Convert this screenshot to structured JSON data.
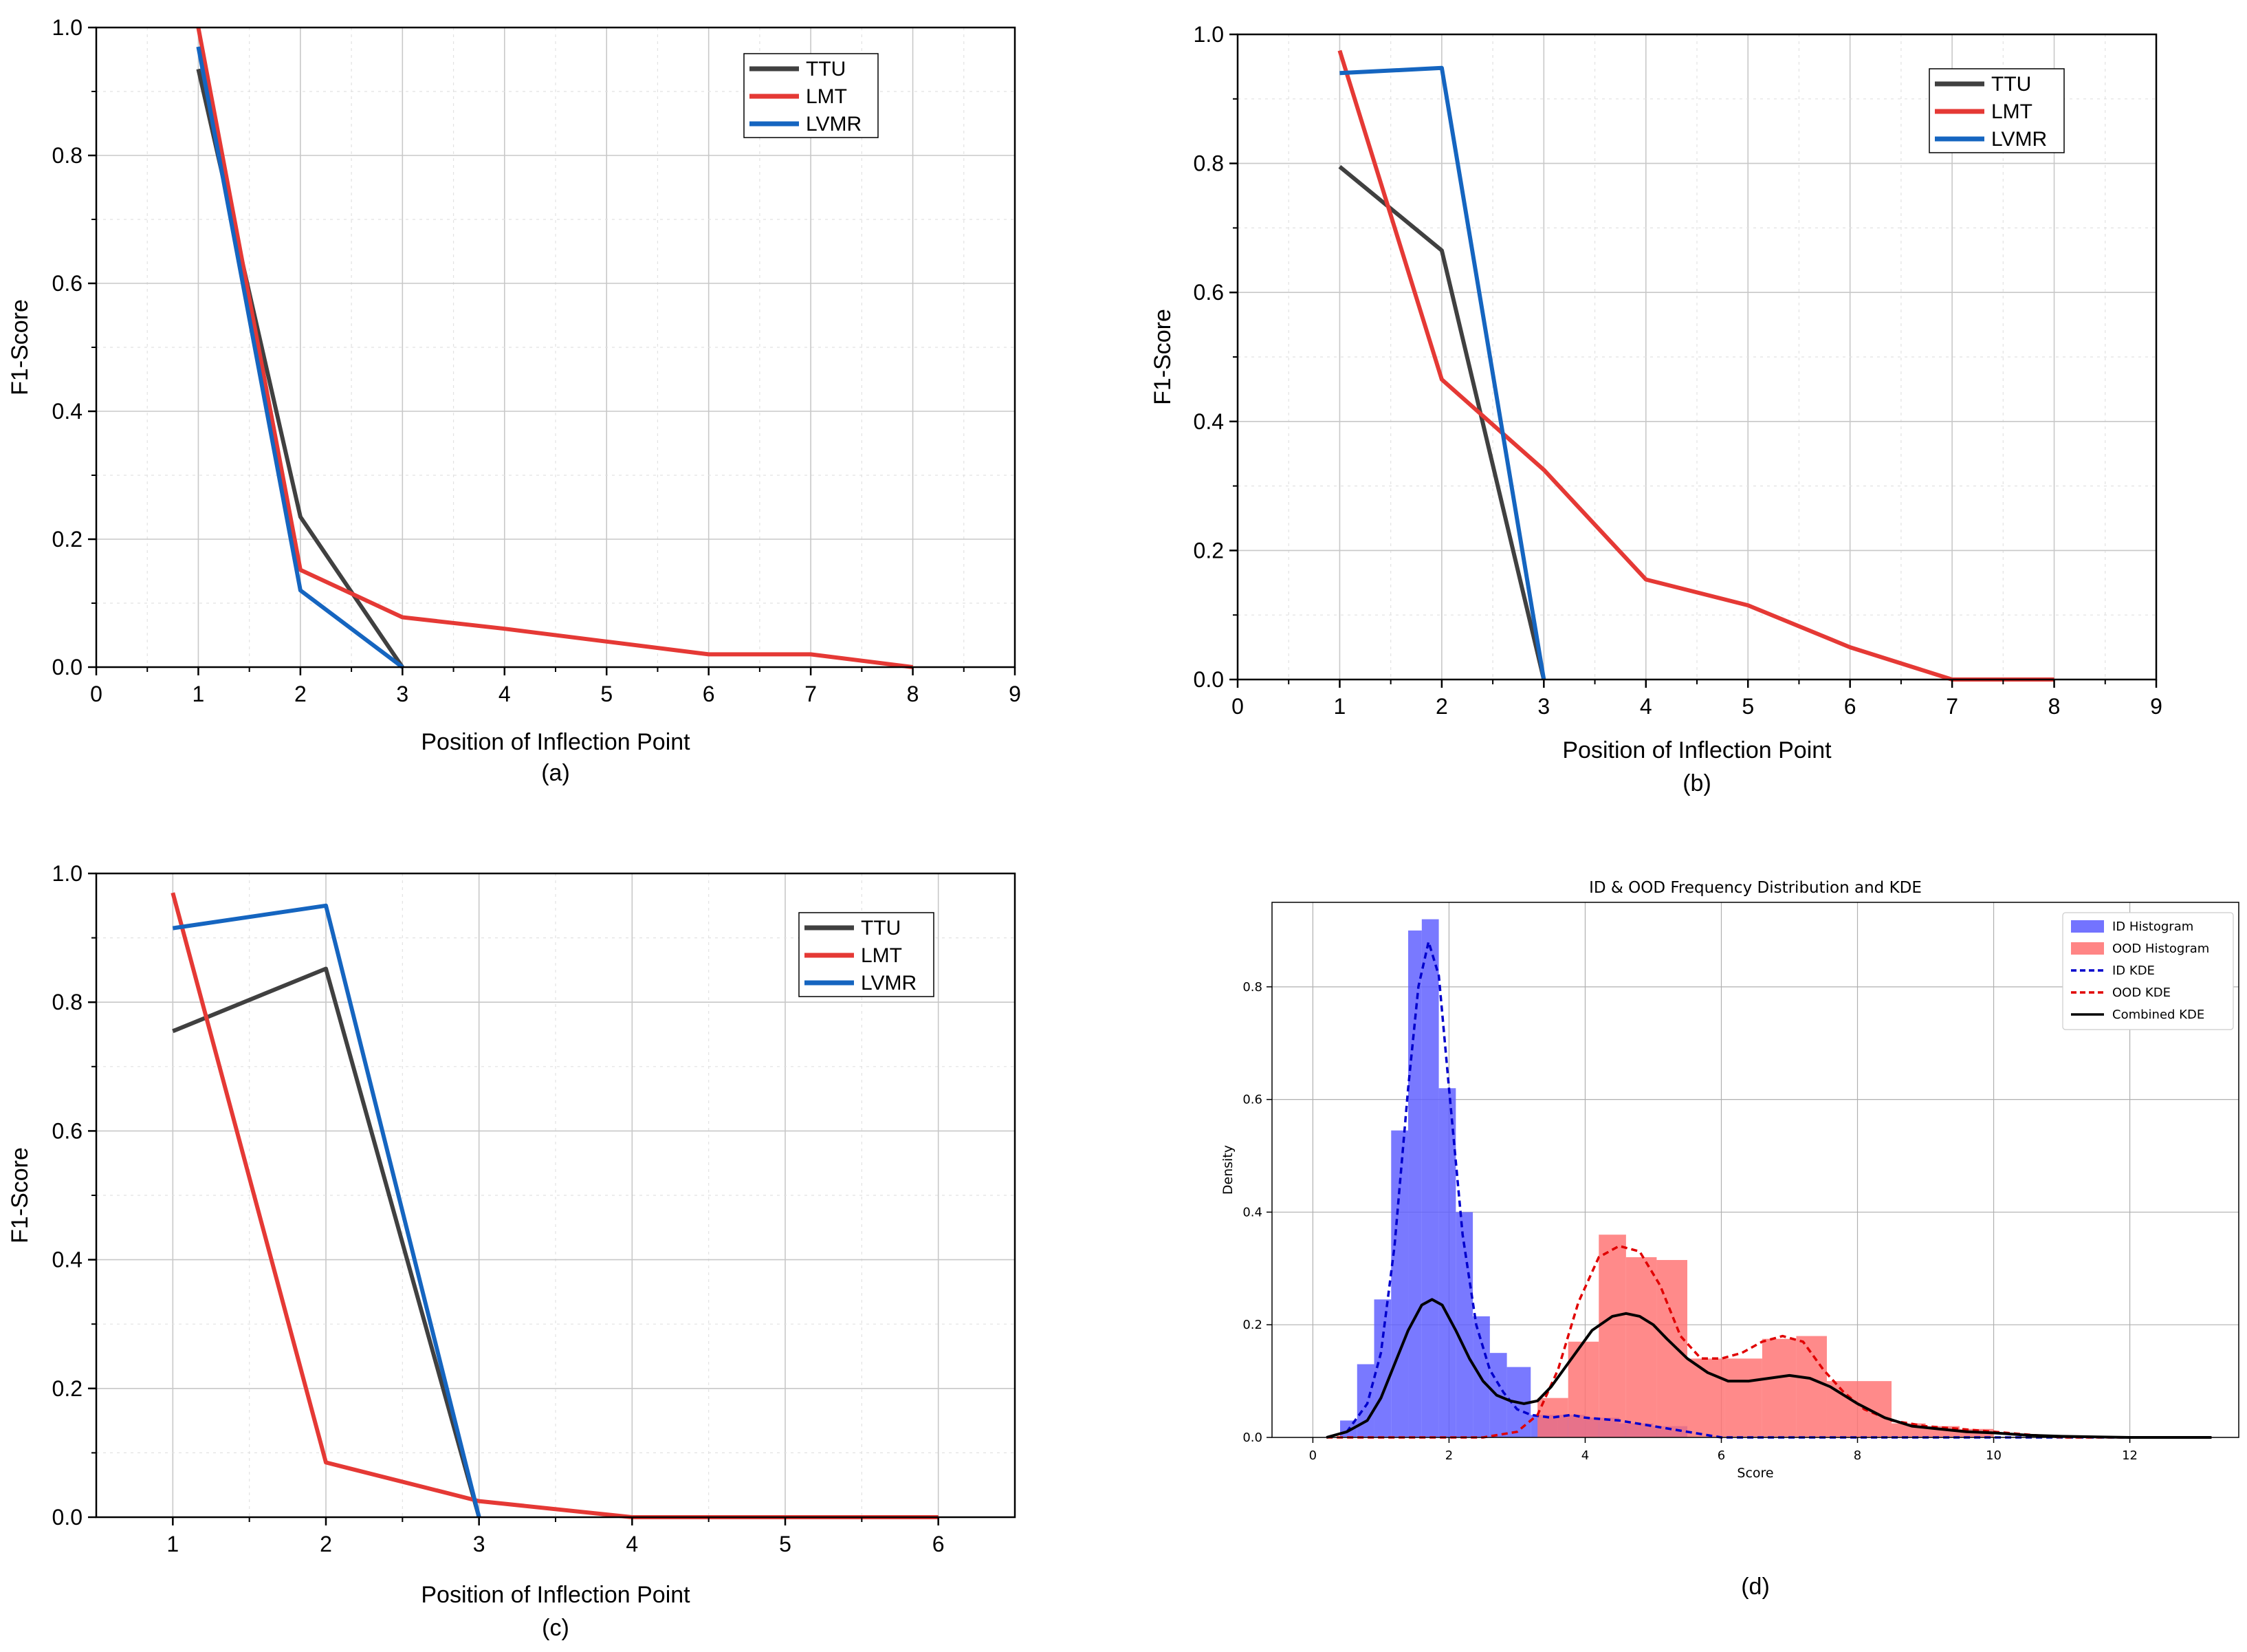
{
  "chart_data": [
    {
      "id": "a",
      "type": "line",
      "caption": "(a)",
      "xlabel": "Position of Inflection Point",
      "ylabel": "F1-Score",
      "xlim": [
        0,
        9
      ],
      "ylim": [
        0,
        1.0
      ],
      "xticks": [
        0,
        1,
        2,
        3,
        4,
        5,
        6,
        7,
        8,
        9
      ],
      "yticks": [
        0.0,
        0.2,
        0.4,
        0.6,
        0.8,
        1.0
      ],
      "grid": true,
      "legend": "top-right",
      "series": [
        {
          "name": "TTU",
          "color": "#404040",
          "x": [
            1,
            2,
            3
          ],
          "y": [
            0.935,
            0.235,
            0.0
          ]
        },
        {
          "name": "LMT",
          "color": "#e53935",
          "x": [
            1,
            2,
            3,
            4,
            5,
            6,
            7,
            8
          ],
          "y": [
            1.0,
            0.152,
            0.078,
            0.06,
            0.04,
            0.02,
            0.02,
            0.0
          ]
        },
        {
          "name": "LVMR",
          "color": "#1565c0",
          "x": [
            1,
            2,
            3
          ],
          "y": [
            0.97,
            0.12,
            0.0
          ]
        }
      ]
    },
    {
      "id": "b",
      "type": "line",
      "caption": "(b)",
      "xlabel": "Position of Inflection Point",
      "ylabel": "F1-Score",
      "xlim": [
        0,
        9
      ],
      "ylim": [
        0,
        1.0
      ],
      "xticks": [
        0,
        1,
        2,
        3,
        4,
        5,
        6,
        7,
        8,
        9
      ],
      "yticks": [
        0.0,
        0.2,
        0.4,
        0.6,
        0.8,
        1.0
      ],
      "grid": true,
      "legend": "top-right",
      "series": [
        {
          "name": "TTU",
          "color": "#404040",
          "x": [
            1,
            2,
            3
          ],
          "y": [
            0.795,
            0.665,
            0.0
          ]
        },
        {
          "name": "LMT",
          "color": "#e53935",
          "x": [
            1,
            2,
            3,
            4,
            5,
            6,
            7,
            8
          ],
          "y": [
            0.975,
            0.465,
            0.325,
            0.155,
            0.115,
            0.05,
            0.0,
            0.0
          ]
        },
        {
          "name": "LVMR",
          "color": "#1565c0",
          "x": [
            1,
            2,
            3
          ],
          "y": [
            0.94,
            0.948,
            0.0
          ]
        }
      ]
    },
    {
      "id": "c",
      "type": "line",
      "caption": "(c)",
      "xlabel": "Position of Inflection Point",
      "ylabel": "F1-Score",
      "xlim": [
        0.5,
        6.5
      ],
      "ylim": [
        0,
        1.0
      ],
      "xticks": [
        1,
        2,
        3,
        4,
        5,
        6
      ],
      "yticks": [
        0.0,
        0.2,
        0.4,
        0.6,
        0.8,
        1.0
      ],
      "grid": true,
      "legend": "top-right",
      "series": [
        {
          "name": "TTU",
          "color": "#404040",
          "x": [
            1,
            2,
            3
          ],
          "y": [
            0.755,
            0.852,
            0.0
          ]
        },
        {
          "name": "LMT",
          "color": "#e53935",
          "x": [
            1,
            2,
            3,
            4,
            5,
            6
          ],
          "y": [
            0.97,
            0.085,
            0.025,
            0.0,
            0.0,
            0.0
          ]
        },
        {
          "name": "LVMR",
          "color": "#1565c0",
          "x": [
            1,
            2,
            3
          ],
          "y": [
            0.915,
            0.95,
            0.0
          ]
        }
      ]
    },
    {
      "id": "d",
      "type": "bar",
      "caption": "(d)",
      "title": "ID & OOD Frequency Distribution and KDE",
      "xlabel": "Score",
      "ylabel": "Density",
      "xlim": [
        -0.6,
        13.6
      ],
      "ylim": [
        0,
        0.95
      ],
      "xticks": [
        0,
        2,
        4,
        6,
        8,
        10,
        12
      ],
      "yticks": [
        0.0,
        0.2,
        0.4,
        0.6,
        0.8
      ],
      "grid": true,
      "legend": "top-right",
      "histograms": [
        {
          "name": "ID Histogram",
          "color": "#5b5bff",
          "bin_edges": [
            0.4,
            0.65,
            0.9,
            1.15,
            1.4,
            1.6,
            1.85,
            2.1,
            2.35,
            2.6,
            2.85,
            3.2,
            3.6,
            4.0,
            4.5,
            5.0,
            5.5
          ],
          "values": [
            0.03,
            0.13,
            0.245,
            0.545,
            0.9,
            0.92,
            0.62,
            0.4,
            0.215,
            0.15,
            0.125,
            0.04,
            0.04,
            0.035,
            0.025,
            0.02
          ]
        },
        {
          "name": "OOD Histogram",
          "color": "#ff7070",
          "bin_edges": [
            0.4,
            0.9,
            1.4,
            1.9,
            2.4,
            2.9,
            3.3,
            3.75,
            4.2,
            4.6,
            5.05,
            5.5,
            6.05,
            6.6,
            7.1,
            7.55,
            8.0,
            8.5,
            9.0,
            9.5,
            10.0
          ],
          "values": [
            0.0,
            0.0,
            0.0,
            0.0,
            0.0,
            0.0,
            0.07,
            0.17,
            0.36,
            0.32,
            0.315,
            0.14,
            0.14,
            0.175,
            0.18,
            0.1,
            0.1,
            0.025,
            0.02,
            0.015
          ]
        }
      ],
      "series": [
        {
          "name": "ID KDE",
          "color": "#0000cc",
          "dash": true,
          "x": [
            0.2,
            0.5,
            0.8,
            1.0,
            1.2,
            1.4,
            1.55,
            1.7,
            1.85,
            2.0,
            2.2,
            2.4,
            2.6,
            2.8,
            3.0,
            3.2,
            3.5,
            3.8,
            4.0,
            4.5,
            5.0,
            5.5,
            6.0,
            7.0,
            8.0,
            10.0,
            13.2
          ],
          "y": [
            0.0,
            0.01,
            0.06,
            0.15,
            0.34,
            0.62,
            0.8,
            0.88,
            0.82,
            0.62,
            0.36,
            0.2,
            0.12,
            0.08,
            0.05,
            0.04,
            0.035,
            0.04,
            0.035,
            0.03,
            0.02,
            0.01,
            0.0,
            0.0,
            0.0,
            0.0,
            0.0
          ]
        },
        {
          "name": "OOD KDE",
          "color": "#e00000",
          "dash": true,
          "x": [
            0.2,
            2.5,
            3.0,
            3.3,
            3.6,
            3.9,
            4.2,
            4.5,
            4.8,
            5.1,
            5.4,
            5.7,
            6.0,
            6.3,
            6.6,
            6.9,
            7.2,
            7.5,
            7.8,
            8.1,
            8.5,
            9.0,
            9.5,
            10.0,
            10.5,
            11.0,
            13.2
          ],
          "y": [
            0.0,
            0.0,
            0.01,
            0.04,
            0.12,
            0.24,
            0.32,
            0.34,
            0.33,
            0.27,
            0.18,
            0.14,
            0.14,
            0.15,
            0.17,
            0.18,
            0.17,
            0.12,
            0.08,
            0.05,
            0.03,
            0.02,
            0.015,
            0.01,
            0.005,
            0.0,
            0.0
          ]
        },
        {
          "name": "Combined KDE",
          "color": "#000000",
          "dash": false,
          "x": [
            0.2,
            0.5,
            0.8,
            1.0,
            1.2,
            1.4,
            1.6,
            1.75,
            1.9,
            2.1,
            2.3,
            2.5,
            2.7,
            2.9,
            3.1,
            3.3,
            3.5,
            3.8,
            4.1,
            4.4,
            4.6,
            4.8,
            5.0,
            5.2,
            5.5,
            5.8,
            6.1,
            6.4,
            6.7,
            7.0,
            7.3,
            7.6,
            8.0,
            8.4,
            8.8,
            9.2,
            9.6,
            10.0,
            10.5,
            11.0,
            12.0,
            13.2
          ],
          "y": [
            0.0,
            0.01,
            0.03,
            0.07,
            0.13,
            0.19,
            0.235,
            0.245,
            0.235,
            0.19,
            0.14,
            0.1,
            0.075,
            0.065,
            0.06,
            0.065,
            0.09,
            0.14,
            0.19,
            0.215,
            0.22,
            0.215,
            0.2,
            0.175,
            0.14,
            0.115,
            0.1,
            0.1,
            0.105,
            0.11,
            0.105,
            0.09,
            0.06,
            0.035,
            0.02,
            0.015,
            0.01,
            0.008,
            0.004,
            0.002,
            0.0,
            0.0
          ]
        }
      ]
    }
  ]
}
